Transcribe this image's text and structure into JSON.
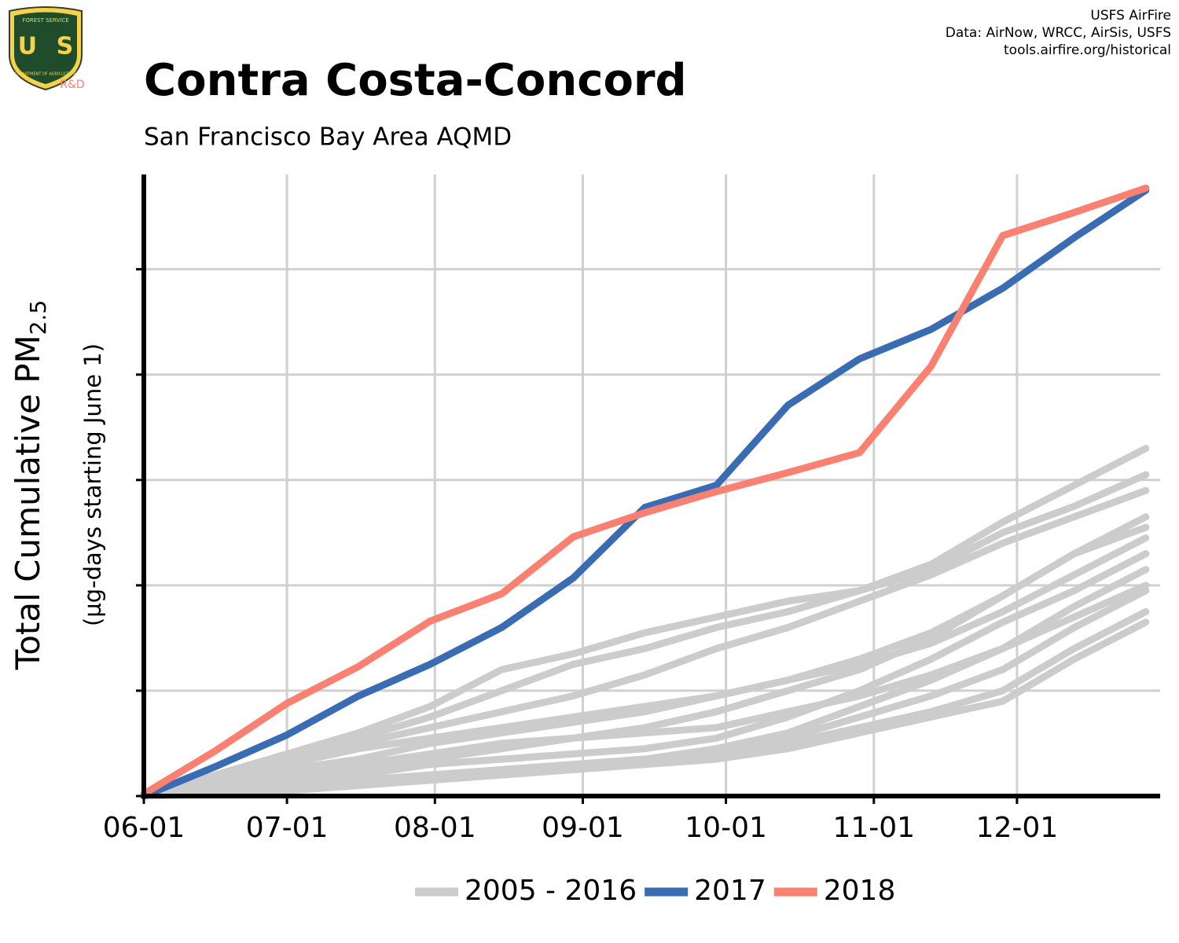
{
  "logo": {
    "top": "FOREST SERVICE",
    "letters": "U S",
    "bottom": "DEPARTMENT OF AGRICULTURE",
    "badge": "R&D"
  },
  "credits": [
    "USFS AirFire",
    "Data: AirNow, WRCC, AirSis, USFS",
    "tools.airfire.org/historical"
  ],
  "chart_data": {
    "type": "line",
    "title": "Contra Costa-Concord",
    "subtitle": "San Francisco Bay Area AQMD",
    "y_label": "Total Cumulative PM",
    "y_label_subscript": "2.5",
    "y_label_note": "(µg-days starting June 1)",
    "x": [
      0,
      15,
      30,
      45,
      60,
      75,
      90,
      105,
      120,
      135,
      150,
      165,
      180,
      195,
      210
    ],
    "xlim": [
      0,
      213
    ],
    "xticks": [
      {
        "value": 0,
        "label": "06-01"
      },
      {
        "value": 30,
        "label": "07-01"
      },
      {
        "value": 61,
        "label": "08-01"
      },
      {
        "value": 92,
        "label": "09-01"
      },
      {
        "value": 122,
        "label": "10-01"
      },
      {
        "value": 153,
        "label": "11-01"
      },
      {
        "value": 183,
        "label": "12-01"
      }
    ],
    "ylim": [
      0,
      5.9
    ],
    "yticks": [
      0,
      1,
      2,
      3,
      4,
      5
    ],
    "grid": true,
    "series": [
      {
        "name": "2005 - 2016",
        "color": "#cccccc",
        "values": [
          [
            0,
            0.15,
            0.35,
            0.55,
            0.75,
            1.0,
            1.25,
            1.4,
            1.6,
            1.75,
            1.95,
            2.2,
            2.6,
            2.95,
            3.3
          ],
          [
            0,
            0.2,
            0.4,
            0.6,
            0.85,
            1.2,
            1.35,
            1.55,
            1.7,
            1.85,
            1.95,
            2.15,
            2.5,
            2.75,
            3.05
          ],
          [
            0,
            0.1,
            0.3,
            0.5,
            0.65,
            0.8,
            0.95,
            1.15,
            1.4,
            1.6,
            1.85,
            2.1,
            2.4,
            2.65,
            2.9
          ],
          [
            0,
            0.1,
            0.25,
            0.35,
            0.5,
            0.6,
            0.7,
            0.8,
            0.95,
            1.1,
            1.3,
            1.55,
            1.9,
            2.3,
            2.65
          ],
          [
            0,
            0.05,
            0.15,
            0.25,
            0.35,
            0.45,
            0.55,
            0.65,
            0.8,
            1.0,
            1.2,
            1.5,
            1.9,
            2.3,
            2.55
          ],
          [
            0,
            0.1,
            0.3,
            0.45,
            0.55,
            0.65,
            0.75,
            0.85,
            0.95,
            1.1,
            1.25,
            1.45,
            1.75,
            2.1,
            2.45
          ],
          [
            0,
            0.05,
            0.15,
            0.2,
            0.3,
            0.35,
            0.4,
            0.45,
            0.55,
            0.75,
            1.0,
            1.3,
            1.65,
            1.95,
            2.3
          ],
          [
            0,
            0.05,
            0.1,
            0.15,
            0.2,
            0.25,
            0.3,
            0.35,
            0.45,
            0.6,
            0.85,
            1.1,
            1.4,
            1.8,
            2.15
          ],
          [
            0,
            0.1,
            0.2,
            0.3,
            0.4,
            0.5,
            0.55,
            0.6,
            0.65,
            0.8,
            0.95,
            1.15,
            1.4,
            1.7,
            2.0
          ],
          [
            0,
            0.05,
            0.1,
            0.15,
            0.2,
            0.25,
            0.3,
            0.35,
            0.4,
            0.55,
            0.75,
            0.95,
            1.2,
            1.6,
            1.95
          ],
          [
            0,
            0.05,
            0.1,
            0.15,
            0.2,
            0.25,
            0.3,
            0.35,
            0.4,
            0.5,
            0.65,
            0.8,
            1.0,
            1.4,
            1.75
          ],
          [
            0,
            0.02,
            0.05,
            0.1,
            0.15,
            0.2,
            0.25,
            0.3,
            0.35,
            0.45,
            0.6,
            0.75,
            0.9,
            1.3,
            1.65
          ]
        ]
      },
      {
        "name": "2017",
        "color": "#3a6cb4",
        "values": [
          0,
          0.28,
          0.58,
          0.95,
          1.25,
          1.6,
          2.07,
          2.74,
          2.95,
          3.71,
          4.15,
          4.43,
          4.82,
          5.3,
          5.75
        ]
      },
      {
        "name": "2018",
        "color": "#fa8072",
        "values": [
          0.02,
          0.43,
          0.88,
          1.23,
          1.66,
          1.92,
          2.46,
          2.69,
          2.89,
          3.07,
          3.26,
          4.08,
          5.32,
          5.54,
          5.77
        ]
      }
    ]
  }
}
